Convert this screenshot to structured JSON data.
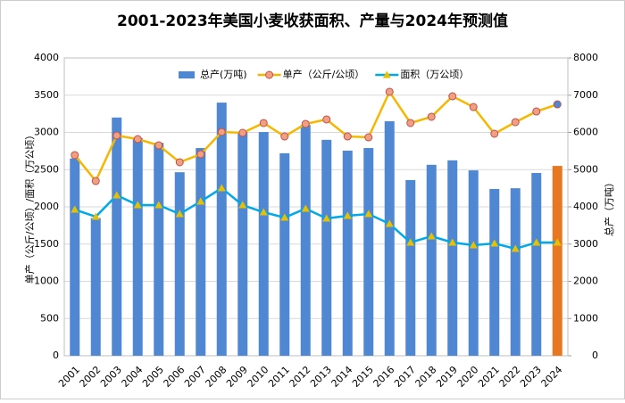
{
  "chart_data": {
    "type": "bar-line",
    "title": "2001-2023年美国小麦收获面积、产量与2024年预测值",
    "y_label": "单产（公斤/公顷）/面积（万公顷）",
    "y2_label": "总产（万吨）",
    "categories": [
      "2001",
      "2002",
      "2003",
      "2004",
      "2005",
      "2006",
      "2007",
      "2008",
      "2009",
      "2010",
      "2011",
      "2012",
      "2013",
      "2014",
      "2015",
      "2016",
      "2017",
      "2018",
      "2019",
      "2020",
      "2021",
      "2022",
      "2023",
      "2024"
    ],
    "ylim": [
      0,
      4000
    ],
    "yticks": [
      0,
      500,
      1000,
      1500,
      2000,
      2500,
      3000,
      3500,
      4000
    ],
    "y2lim": [
      0,
      8000
    ],
    "y2ticks": [
      0,
      1000,
      2000,
      3000,
      4000,
      5000,
      6000,
      7000,
      8000
    ],
    "grid": true,
    "series": [
      {
        "name": "总产(万吨)",
        "type": "bar",
        "axis": "y2",
        "color": "#4f87d3",
        "colors": [
          "#4f87d3",
          "#4f87d3",
          "#4f87d3",
          "#4f87d3",
          "#4f87d3",
          "#4f87d3",
          "#4f87d3",
          "#4f87d3",
          "#4f87d3",
          "#4f87d3",
          "#4f87d3",
          "#4f87d3",
          "#4f87d3",
          "#4f87d3",
          "#4f87d3",
          "#4f87d3",
          "#4f87d3",
          "#4f87d3",
          "#4f87d3",
          "#4f87d3",
          "#4f87d3",
          "#4f87d3",
          "#4f87d3",
          "#e87722"
        ],
        "values": [
          5300,
          3700,
          6400,
          5850,
          5720,
          4930,
          5580,
          6800,
          6010,
          6010,
          5440,
          6200,
          5800,
          5510,
          5580,
          6300,
          4720,
          5130,
          5250,
          4980,
          4480,
          4500,
          4910,
          5100
        ]
      },
      {
        "name": "单产（公斤/公顷）",
        "type": "line",
        "color": "#f5b800",
        "marker": "circle",
        "marker_colors": [
          "#f0a080",
          "#f0a080",
          "#f0a080",
          "#f0a080",
          "#f0a080",
          "#f0a080",
          "#f0a080",
          "#f0a080",
          "#f0a080",
          "#f0a080",
          "#f0a080",
          "#f0a080",
          "#f0a080",
          "#f0a080",
          "#f0a080",
          "#f0a080",
          "#f0a080",
          "#f0a080",
          "#f0a080",
          "#f0a080",
          "#f0a080",
          "#f0a080",
          "#f0a080",
          "#4f87d3"
        ],
        "values": [
          2695,
          2347,
          2958,
          2910,
          2826,
          2599,
          2707,
          3006,
          2994,
          3126,
          2946,
          3114,
          3174,
          2946,
          2934,
          3545,
          3126,
          3210,
          3485,
          3341,
          2982,
          3138,
          3281,
          3377
        ]
      },
      {
        "name": "面积（万公顷）",
        "type": "line",
        "color": "#00a8e8",
        "marker": "triangle",
        "marker_color": "#e8c000",
        "values": [
          1964,
          1868,
          2156,
          2024,
          2024,
          1904,
          2072,
          2251,
          2024,
          1928,
          1856,
          1976,
          1844,
          1880,
          1904,
          1772,
          1521,
          1605,
          1521,
          1485,
          1509,
          1437,
          1521,
          1521
        ]
      }
    ]
  }
}
